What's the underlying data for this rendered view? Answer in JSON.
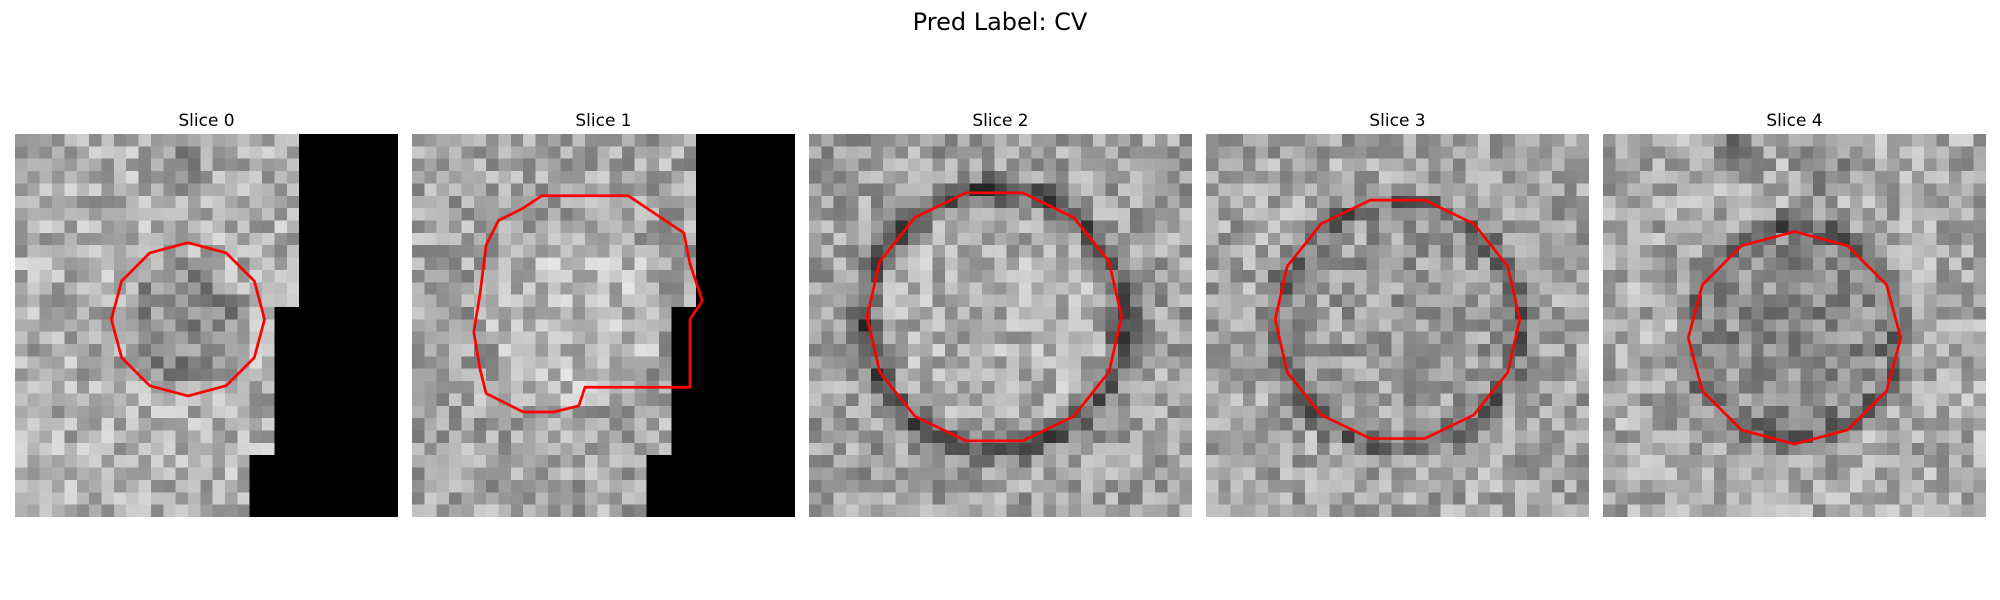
{
  "figure": {
    "suptitle": "Pred Label: CV"
  },
  "panels": [
    {
      "title": "Slice 0"
    },
    {
      "title": "Slice 1"
    },
    {
      "title": "Slice 2"
    },
    {
      "title": "Slice 3"
    },
    {
      "title": "Slice 4"
    }
  ],
  "colors": {
    "contour": "#ff0000",
    "masked_region": "#000000"
  }
}
